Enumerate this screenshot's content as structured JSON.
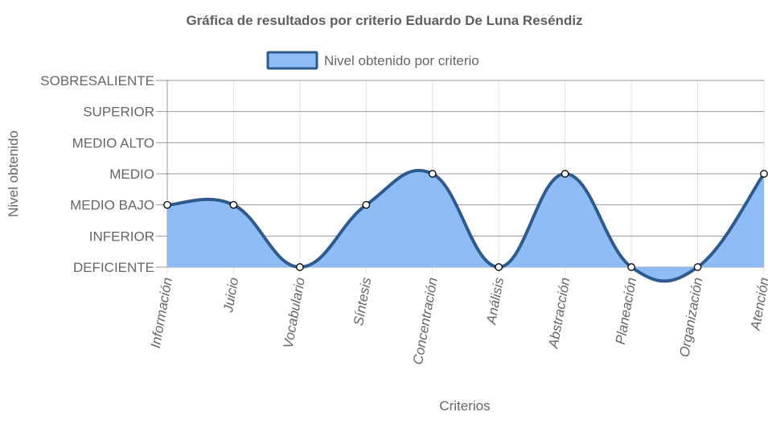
{
  "chart_data": {
    "type": "area",
    "title": "Gráfica de resultados por criterio Eduardo De Luna Reséndiz",
    "xlabel": "Criterios",
    "ylabel": "Nivel obtenido",
    "categories": [
      "Información",
      "Juicio",
      "Vocabulario",
      "Síntesis",
      "Concentración",
      "Análisis",
      "Abstracción",
      "Planeación",
      "Organización",
      "Atención"
    ],
    "y_levels": [
      "DEFICIENTE",
      "INFERIOR",
      "MEDIO BAJO",
      "MEDIO",
      "MEDIO ALTO",
      "SUPERIOR",
      "SOBRESALIENTE"
    ],
    "ylim": [
      0,
      6
    ],
    "series": [
      {
        "name": "Nivel obtenido por criterio",
        "values": [
          2,
          2,
          0,
          2,
          3,
          0,
          3,
          0,
          0,
          3
        ],
        "value_labels": [
          "MEDIO BAJO",
          "MEDIO BAJO",
          "DEFICIENTE",
          "MEDIO BAJO",
          "MEDIO",
          "DEFICIENTE",
          "MEDIO",
          "DEFICIENTE",
          "DEFICIENTE",
          "MEDIO"
        ]
      }
    ],
    "colors": {
      "fill": "#8ebcf7",
      "line": "#2f5a8e",
      "point_fill": "#ffffff",
      "point_stroke": "#000000",
      "grid": "#e2e2e2",
      "grid_y": "#9a9a9a",
      "text": "#666666",
      "title": "#5f5f5f"
    },
    "legend_position": "top",
    "grid": true
  }
}
